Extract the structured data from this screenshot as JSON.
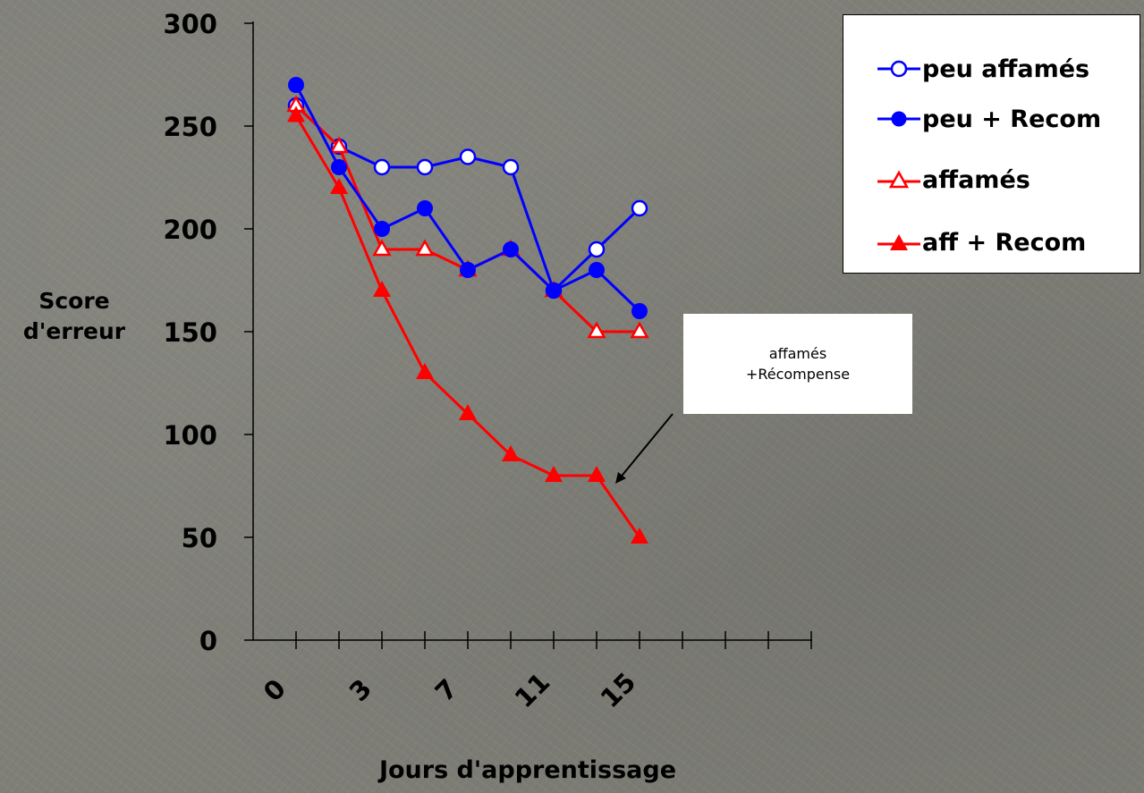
{
  "chart_data": {
    "type": "line",
    "xlabel": "Jours d'apprentissage",
    "ylabel": "Score d'erreur",
    "ylim": [
      0,
      300
    ],
    "yticks": [
      0,
      50,
      100,
      150,
      200,
      250,
      300
    ],
    "xticks_labeled": [
      "0",
      "3",
      "7",
      "11",
      "15"
    ],
    "x": [
      1,
      2,
      3,
      4,
      5,
      6,
      7,
      8,
      9
    ],
    "series": [
      {
        "name": "peu affamés",
        "color": "#0000ff",
        "marker": "circle-open",
        "values": [
          260,
          240,
          230,
          230,
          235,
          230,
          170,
          190,
          210
        ]
      },
      {
        "name": "peu + Recom",
        "color": "#0000ff",
        "marker": "circle-filled",
        "values": [
          270,
          230,
          200,
          210,
          180,
          190,
          170,
          180,
          160
        ]
      },
      {
        "name": "affamés",
        "color": "#ff0000",
        "marker": "triangle-open",
        "values": [
          260,
          240,
          190,
          190,
          180,
          190,
          170,
          150,
          150
        ]
      },
      {
        "name": "aff + Recom",
        "color": "#ff0000",
        "marker": "triangle-filled",
        "values": [
          255,
          220,
          170,
          130,
          110,
          90,
          80,
          80,
          50
        ]
      }
    ],
    "annotation": {
      "line1": "affamés",
      "line2": "+Récompense"
    },
    "legend_position": "top-right",
    "grid": false
  }
}
